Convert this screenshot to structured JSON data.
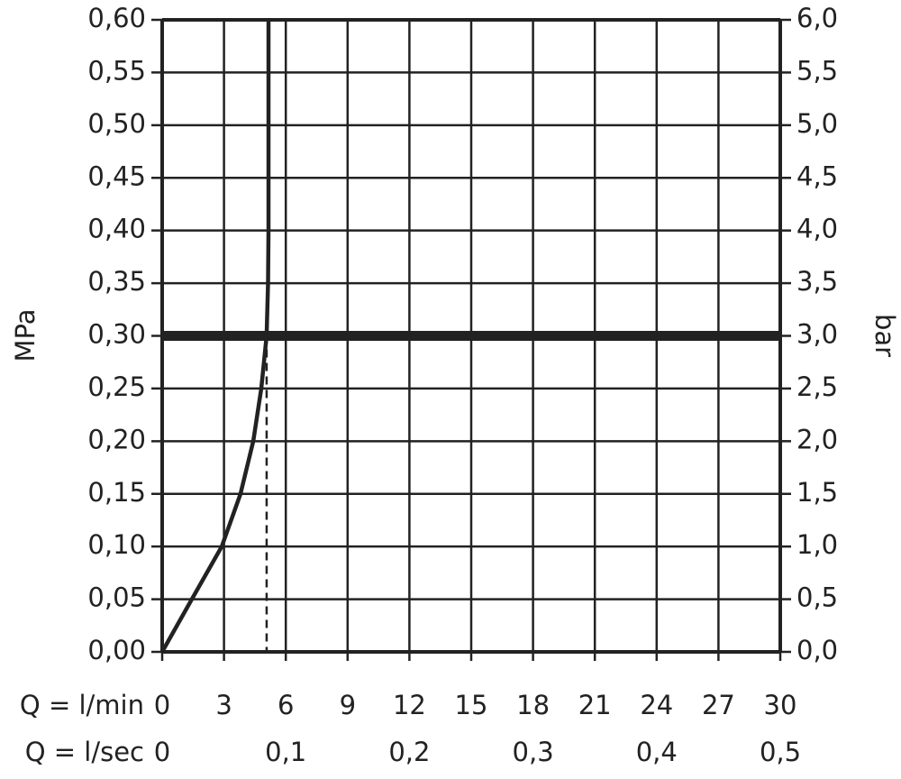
{
  "chart_data": {
    "type": "line",
    "x_label": "Q = l/min",
    "x2_label": "Q = l/sec",
    "y_label": "MPa",
    "y2_label": "bar",
    "x": [
      0,
      1.44,
      2.89,
      3.8,
      4.42,
      4.81,
      5.07,
      5.14,
      5.16,
      5.16
    ],
    "values": [
      0,
      0.05,
      0.1,
      0.15,
      0.2,
      0.25,
      0.3,
      0.35,
      0.4,
      0.6
    ],
    "color": "#222",
    "reference_y": 0.3,
    "reference_x": 5.07,
    "xlim": [
      0,
      30
    ],
    "xticks": [
      0,
      3,
      6,
      9,
      12,
      15,
      18,
      21,
      24,
      27,
      30
    ],
    "x2lim": [
      0,
      0.5
    ],
    "x2ticks": [
      0,
      {
        "value": 0.1,
        "label": "0,1"
      },
      {
        "value": 0.2,
        "label": "0,2"
      },
      {
        "value": 0.3,
        "label": "0,3"
      },
      {
        "value": 0.4,
        "label": "0,4"
      },
      {
        "value": 0.5,
        "label": "0,5"
      }
    ],
    "ylim": [
      0,
      0.6
    ],
    "yticks": [
      {
        "value": 0,
        "label": "0,00"
      },
      {
        "value": 0.05,
        "label": "0,05"
      },
      {
        "value": 0.1,
        "label": "0,10"
      },
      {
        "value": 0.15,
        "label": "0,15"
      },
      {
        "value": 0.2,
        "label": "0,20"
      },
      {
        "value": 0.25,
        "label": "0,25"
      },
      {
        "value": 0.3,
        "label": "0,30"
      },
      {
        "value": 0.35,
        "label": "0,35"
      },
      {
        "value": 0.4,
        "label": "0,40"
      },
      {
        "value": 0.45,
        "label": "0,45"
      },
      {
        "value": 0.5,
        "label": "0,50"
      },
      {
        "value": 0.55,
        "label": "0,55"
      },
      {
        "value": 0.6,
        "label": "0,60"
      }
    ],
    "y2lim": [
      0,
      6
    ],
    "y2ticks": [
      {
        "value": 0,
        "label": "0,0"
      },
      {
        "value": 0.5,
        "label": "0,5"
      },
      {
        "value": 1,
        "label": "1,0"
      },
      {
        "value": 1.5,
        "label": "1,5"
      },
      {
        "value": 2,
        "label": "2,0"
      },
      {
        "value": 2.5,
        "label": "2,5"
      },
      {
        "value": 3,
        "label": "3,0"
      },
      {
        "value": 3.5,
        "label": "3,5"
      },
      {
        "value": 4,
        "label": "4,0"
      },
      {
        "value": 4.5,
        "label": "4,5"
      },
      {
        "value": 5,
        "label": "5,0"
      },
      {
        "value": 5.5,
        "label": "5,5"
      },
      {
        "value": 6,
        "label": "6,0"
      }
    ],
    "grid": true
  }
}
